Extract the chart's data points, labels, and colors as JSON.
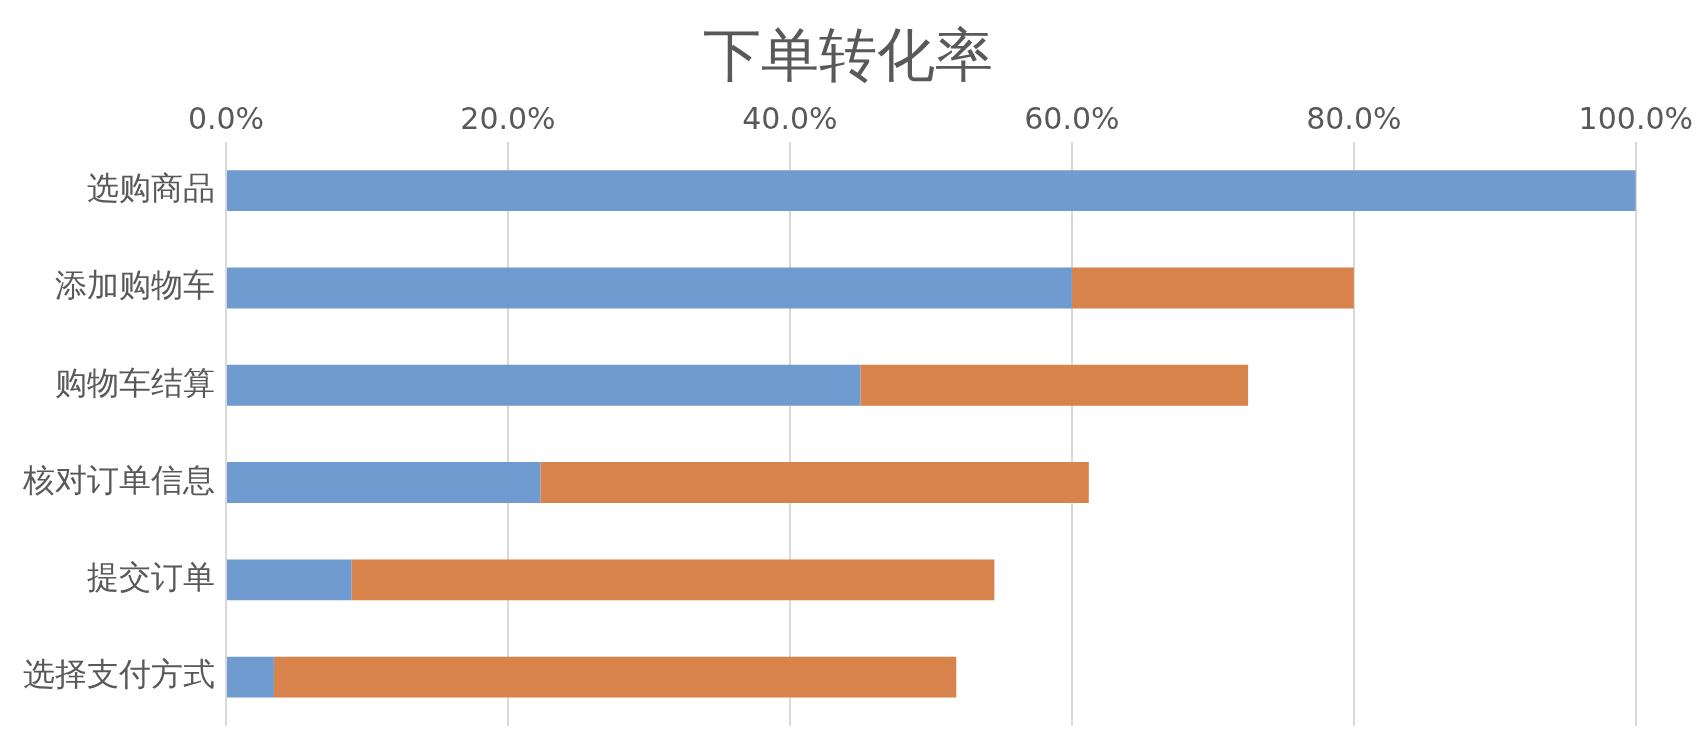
{
  "chart_data": {
    "type": "bar",
    "title": "下单转化率",
    "orientation": "horizontal",
    "stacked": true,
    "categories": [
      "选购商品",
      "添加购物车",
      "购物车结算",
      "核对订单信息",
      "提交订单",
      "选择支付方式"
    ],
    "series": [
      {
        "color": "#6f9bd1",
        "values": [
          100,
          60,
          45,
          22.3,
          8.9,
          3.4
        ]
      },
      {
        "color": "#d8824c",
        "values": [
          null,
          20,
          27.5,
          38.9,
          45.6,
          48.4
        ]
      }
    ],
    "xlim": [
      0,
      100
    ],
    "xticks": [
      {
        "value": 0,
        "label": "0.0%"
      },
      {
        "value": 20,
        "label": "20.0%"
      },
      {
        "value": 40,
        "label": "40.0%"
      },
      {
        "value": 60,
        "label": "60.0%"
      },
      {
        "value": 80,
        "label": "80.0%"
      },
      {
        "value": 100,
        "label": "100.0%"
      }
    ],
    "grid": "x",
    "legend": false
  }
}
